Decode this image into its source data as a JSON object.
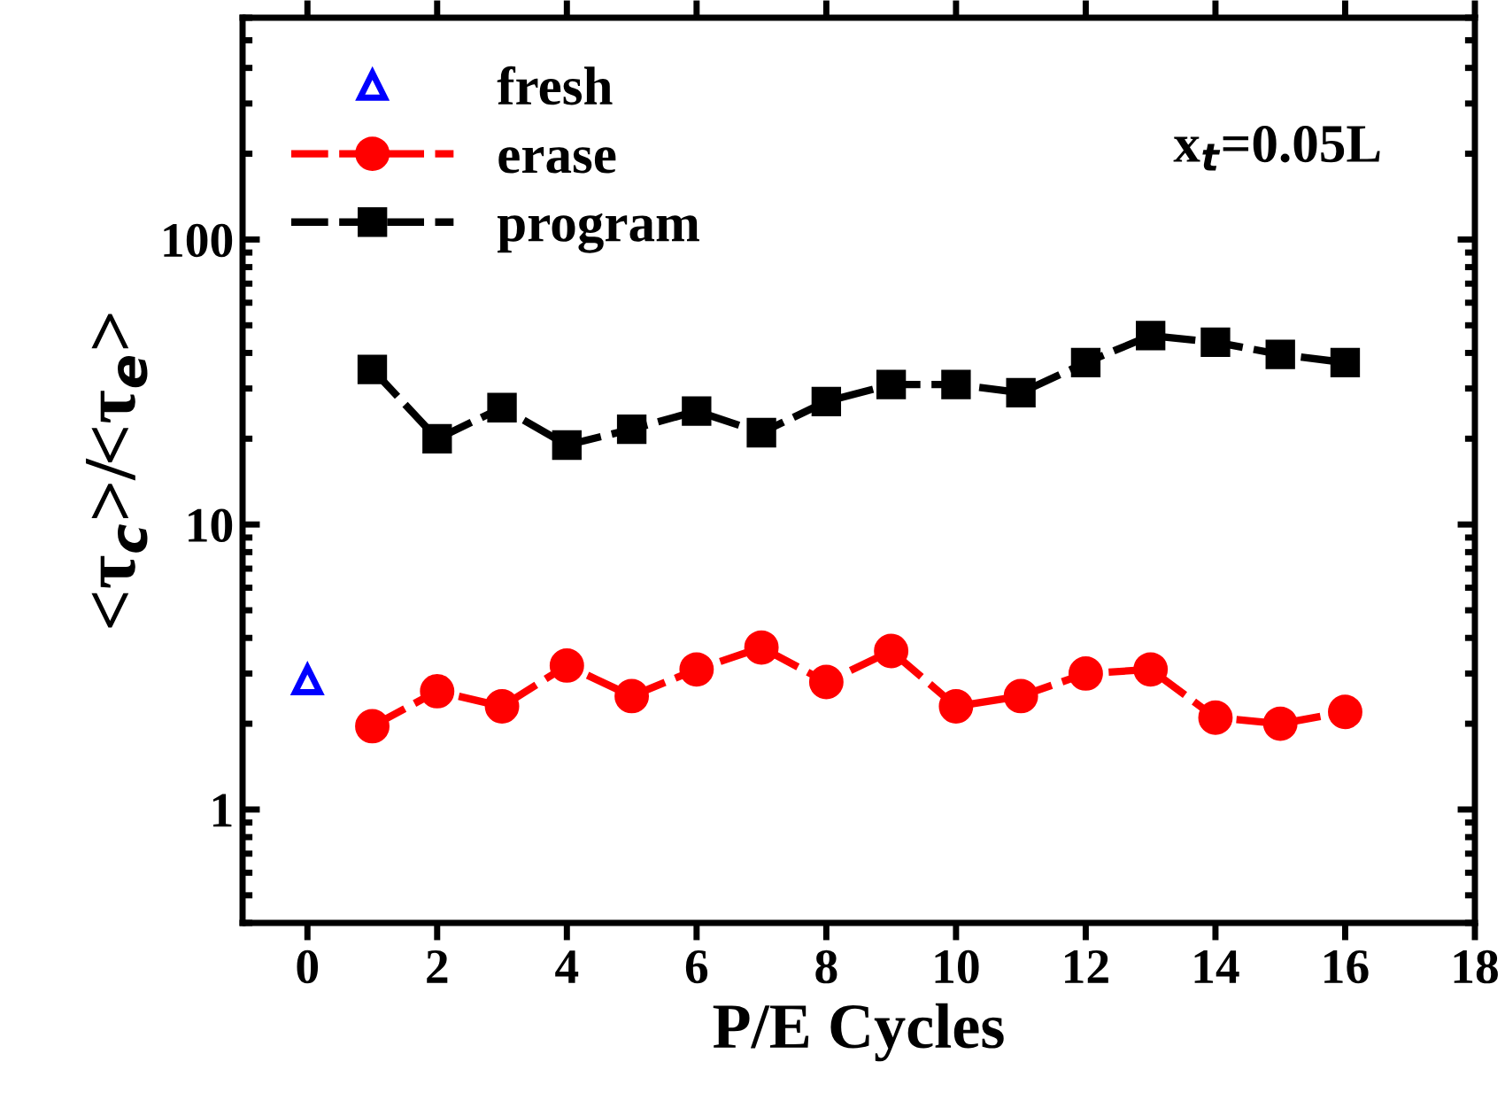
{
  "chart_data": {
    "type": "line",
    "xlabel": "P/E Cycles",
    "ylabel": "<τ$_{c}$>/<τ$_{e}$>",
    "annotations": [
      "x$_{t}$=0.05L"
    ],
    "log": "y",
    "legend": "top left",
    "grid": false,
    "xlim": [
      -1,
      18
    ],
    "xticks": [
      0,
      2,
      4,
      6,
      8,
      10,
      12,
      14,
      16,
      18
    ],
    "ylim": [
      0.4,
      600
    ],
    "yticks": [
      {
        "value": 0.4,
        "label": null
      },
      {
        "value": 0.5,
        "label": null
      },
      {
        "value": 0.6,
        "label": null
      },
      {
        "value": 0.7,
        "label": null
      },
      {
        "value": 0.8,
        "label": null
      },
      {
        "value": 0.9,
        "label": null
      },
      1,
      {
        "value": 2,
        "label": null
      },
      {
        "value": 3,
        "label": null
      },
      {
        "value": 4,
        "label": null
      },
      {
        "value": 5,
        "label": null
      },
      {
        "value": 6,
        "label": null
      },
      {
        "value": 7,
        "label": null
      },
      {
        "value": 8,
        "label": null
      },
      {
        "value": 9,
        "label": null
      },
      10,
      {
        "value": 20,
        "label": null
      },
      {
        "value": 30,
        "label": null
      },
      {
        "value": 40,
        "label": null
      },
      {
        "value": 50,
        "label": null
      },
      {
        "value": 60,
        "label": null
      },
      {
        "value": 70,
        "label": null
      },
      {
        "value": 80,
        "label": null
      },
      {
        "value": 90,
        "label": null
      },
      100,
      {
        "value": 200,
        "label": null
      },
      {
        "value": 300,
        "label": null
      },
      {
        "value": 400,
        "label": null
      },
      {
        "value": 500,
        "label": null
      },
      {
        "value": 600,
        "label": null
      }
    ],
    "series": [
      {
        "name": "fresh",
        "type": "scatter",
        "color": "#0000ff",
        "marker": "triangle",
        "x": [
          0
        ],
        "values": [
          2.85
        ]
      },
      {
        "name": "erase",
        "color": "#ff0000",
        "marker": "circle",
        "line_style": "dashed",
        "x": [
          1,
          2,
          3,
          4,
          5,
          6,
          7,
          8,
          9,
          10,
          11,
          12,
          13,
          14,
          15,
          16
        ],
        "values": [
          1.96,
          2.6,
          2.3,
          3.2,
          2.5,
          3.1,
          3.7,
          2.8,
          3.6,
          2.3,
          2.5,
          3.0,
          3.1,
          2.1,
          2.0,
          2.2
        ]
      },
      {
        "name": "program",
        "color": "#000000",
        "marker": "square",
        "line_style": "dashed",
        "x": [
          1,
          2,
          3,
          4,
          5,
          6,
          7,
          8,
          9,
          10,
          11,
          12,
          13,
          14,
          15,
          16
        ],
        "values": [
          35,
          20,
          25.7,
          19,
          21.6,
          25,
          21,
          27,
          31,
          31,
          29,
          37,
          46,
          43.6,
          39.5,
          37
        ]
      }
    ]
  }
}
